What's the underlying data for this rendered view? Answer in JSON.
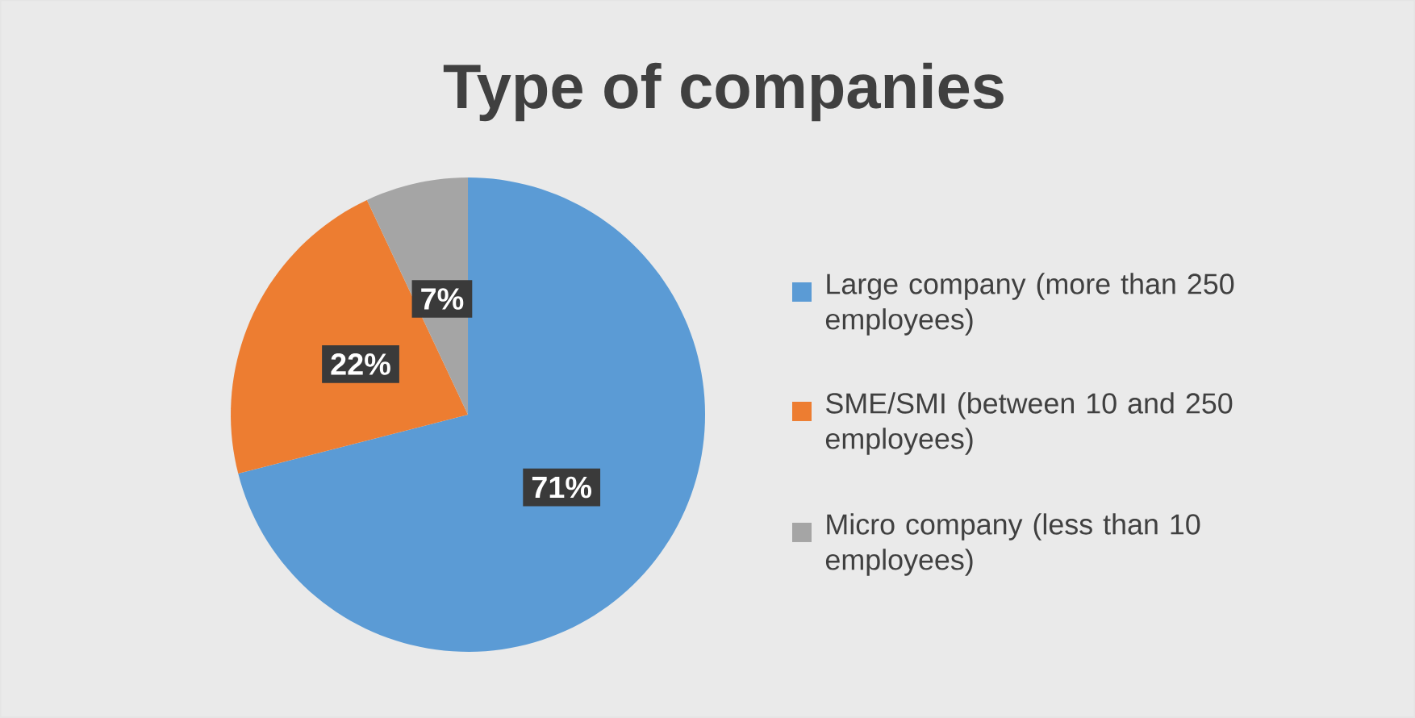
{
  "chart_data": {
    "type": "pie",
    "title": "Type of companies",
    "categories": [
      "Large company (more than 250 employees)",
      "SME/SMI (between 10 and 250 employees)",
      "Micro company (less than 10 employees)"
    ],
    "values": [
      71,
      22,
      7
    ],
    "colors": [
      "#5b9bd5",
      "#ed7d31",
      "#a5a5a5"
    ],
    "value_labels": [
      "71%",
      "22%",
      "7%"
    ],
    "legend": "right"
  }
}
